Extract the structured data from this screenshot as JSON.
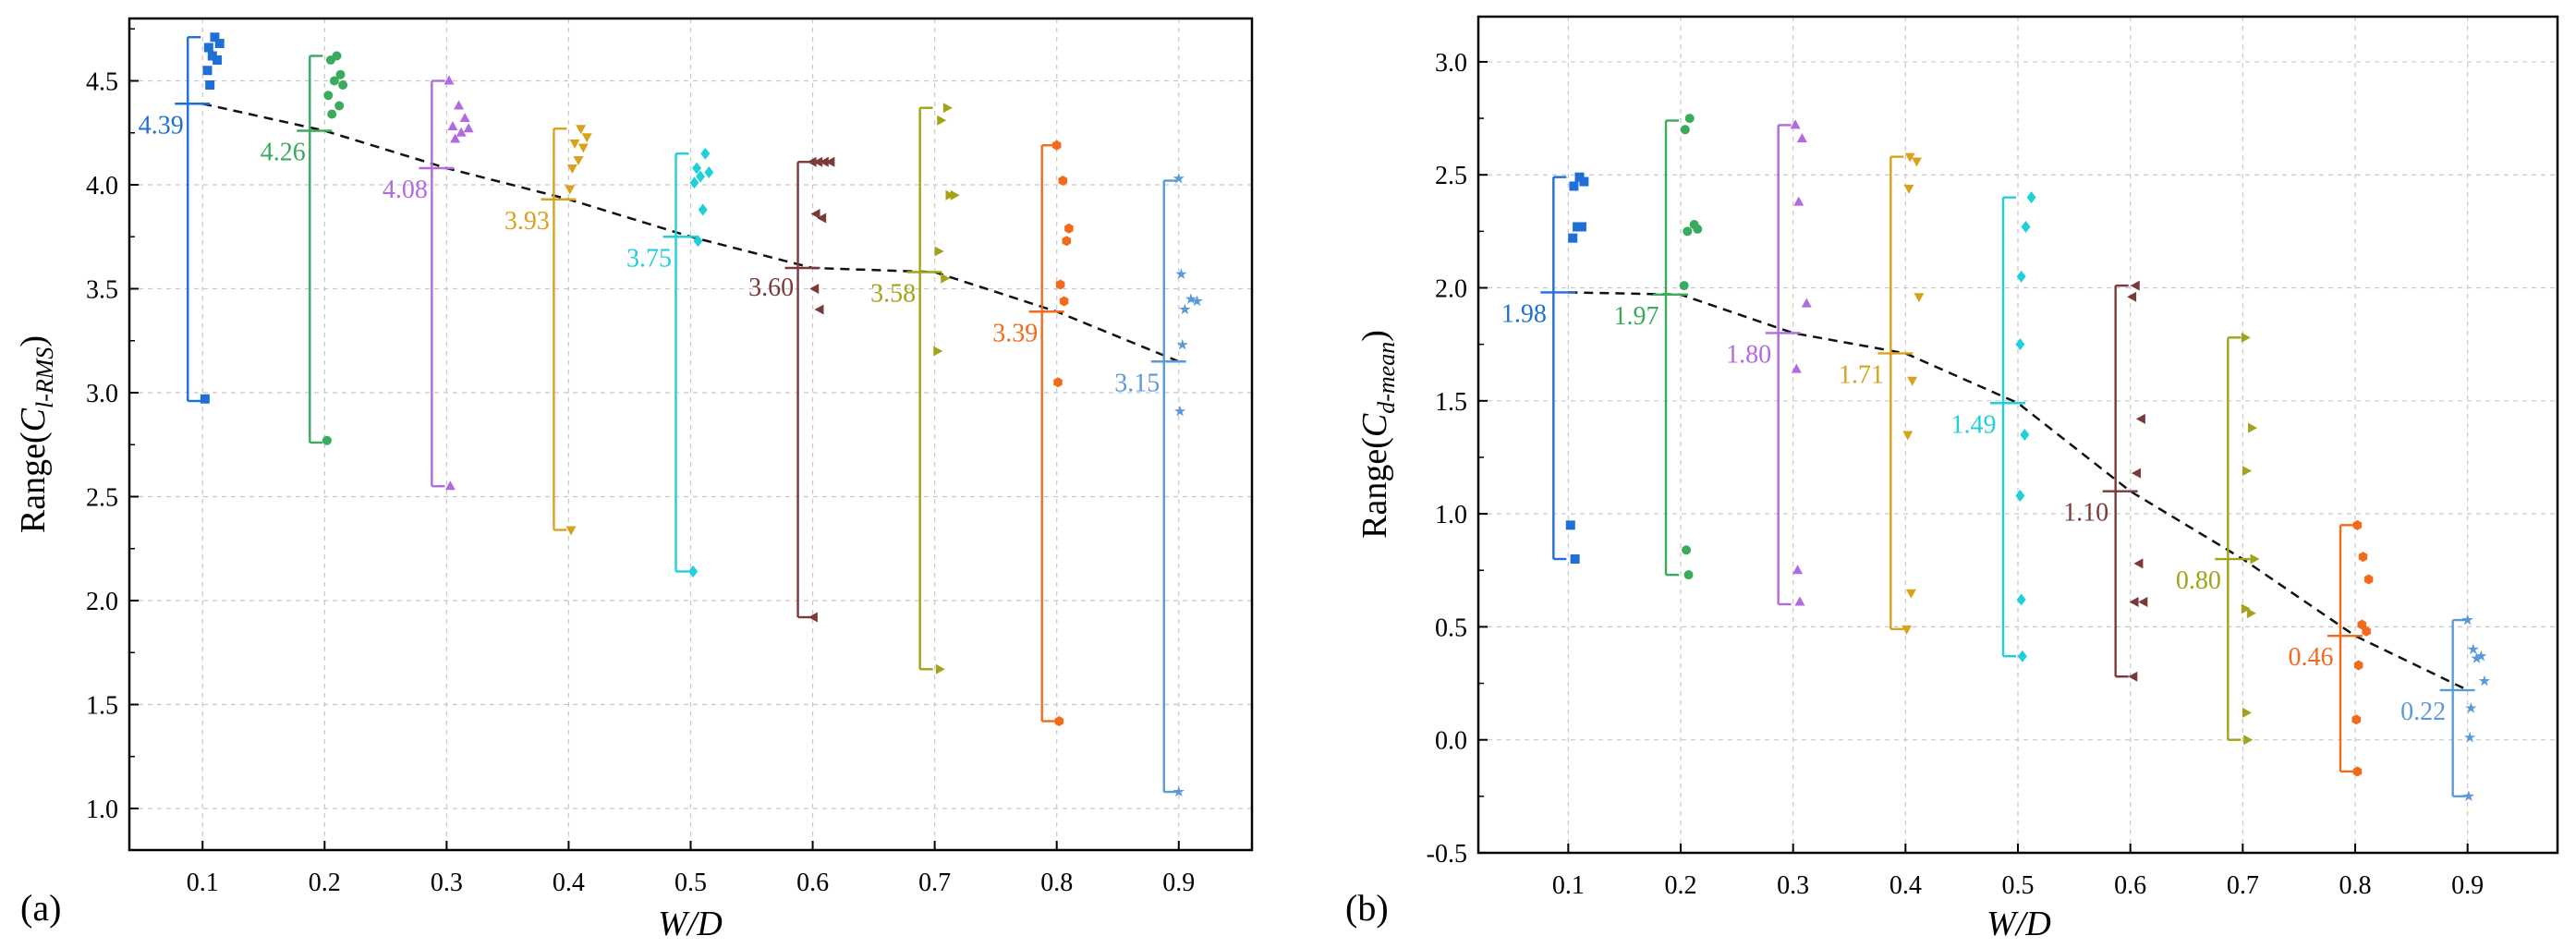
{
  "chart_data": [
    {
      "type": "scatter",
      "panel_label": "(a)",
      "xlabel": "W/D",
      "ylabel_prefix": "Range(",
      "ylabel_main": "C",
      "ylabel_sub": "l-RMS",
      "ylabel_suffix": ")",
      "xlim": [
        0.04,
        0.96
      ],
      "ylim": [
        0.8,
        4.8
      ],
      "x_ticks": [
        0.1,
        0.2,
        0.3,
        0.4,
        0.5,
        0.6,
        0.7,
        0.8,
        0.9
      ],
      "x_tick_labels": [
        "0.1",
        "0.2",
        "0.3",
        "0.4",
        "0.5",
        "0.6",
        "0.7",
        "0.8",
        "0.9"
      ],
      "y_ticks": [
        1.0,
        1.5,
        2.0,
        2.5,
        3.0,
        3.5,
        4.0,
        4.5
      ],
      "y_tick_labels": [
        "1.0",
        "1.5",
        "2.0",
        "2.5",
        "3.0",
        "3.5",
        "4.0",
        "4.5"
      ],
      "grid": true,
      "mean_line": "dashed",
      "series": [
        {
          "x": 0.1,
          "color": "#1f6fd6",
          "marker": "square",
          "min": 2.96,
          "max": 4.71,
          "mean": 4.39,
          "mean_label": "4.39",
          "points": [
            [
              0.11,
              4.71
            ],
            [
              0.114,
              4.68
            ],
            [
              0.105,
              4.66
            ],
            [
              0.108,
              4.62
            ],
            [
              0.112,
              4.6
            ],
            [
              0.104,
              4.55
            ],
            [
              0.106,
              4.48
            ],
            [
              0.102,
              2.97
            ]
          ]
        },
        {
          "x": 0.2,
          "color": "#3aaa5c",
          "marker": "circle",
          "min": 2.76,
          "max": 4.62,
          "mean": 4.26,
          "mean_label": "4.26",
          "points": [
            [
              0.21,
              4.62
            ],
            [
              0.205,
              4.6
            ],
            [
              0.213,
              4.53
            ],
            [
              0.208,
              4.5
            ],
            [
              0.215,
              4.48
            ],
            [
              0.203,
              4.43
            ],
            [
              0.212,
              4.38
            ],
            [
              0.206,
              4.34
            ],
            [
              0.202,
              2.77
            ]
          ]
        },
        {
          "x": 0.3,
          "color": "#b26ae0",
          "marker": "triangle-up",
          "min": 2.55,
          "max": 4.5,
          "mean": 4.08,
          "mean_label": "4.08",
          "points": [
            [
              0.302,
              4.5
            ],
            [
              0.31,
              4.38
            ],
            [
              0.315,
              4.32
            ],
            [
              0.305,
              4.28
            ],
            [
              0.312,
              4.25
            ],
            [
              0.318,
              4.27
            ],
            [
              0.307,
              4.22
            ],
            [
              0.303,
              2.55
            ]
          ]
        },
        {
          "x": 0.4,
          "color": "#d9a21e",
          "marker": "triangle-down",
          "min": 2.34,
          "max": 4.27,
          "mean": 3.93,
          "mean_label": "3.93",
          "points": [
            [
              0.41,
              4.27
            ],
            [
              0.415,
              4.23
            ],
            [
              0.405,
              4.2
            ],
            [
              0.412,
              4.18
            ],
            [
              0.408,
              4.12
            ],
            [
              0.403,
              4.08
            ],
            [
              0.401,
              3.98
            ],
            [
              0.402,
              2.34
            ]
          ]
        },
        {
          "x": 0.5,
          "color": "#1fd0d8",
          "marker": "diamond",
          "min": 2.14,
          "max": 4.15,
          "mean": 3.75,
          "mean_label": "3.75",
          "points": [
            [
              0.512,
              4.15
            ],
            [
              0.505,
              4.08
            ],
            [
              0.515,
              4.06
            ],
            [
              0.508,
              4.04
            ],
            [
              0.503,
              4.01
            ],
            [
              0.51,
              3.88
            ],
            [
              0.506,
              3.73
            ],
            [
              0.502,
              2.14
            ]
          ]
        },
        {
          "x": 0.6,
          "color": "#7a3a3a",
          "marker": "triangle-left",
          "min": 1.92,
          "max": 4.11,
          "mean": 3.6,
          "mean_label": "3.60",
          "points": [
            [
              0.6,
              4.11
            ],
            [
              0.605,
              4.11
            ],
            [
              0.61,
              4.11
            ],
            [
              0.615,
              4.11
            ],
            [
              0.603,
              3.86
            ],
            [
              0.608,
              3.84
            ],
            [
              0.602,
              3.5
            ],
            [
              0.606,
              3.4
            ],
            [
              0.601,
              1.92
            ]
          ]
        },
        {
          "x": 0.7,
          "color": "#a3a31a",
          "marker": "triangle-right",
          "min": 1.67,
          "max": 4.37,
          "mean": 3.58,
          "mean_label": "3.58",
          "points": [
            [
              0.71,
              4.37
            ],
            [
              0.705,
              4.31
            ],
            [
              0.712,
              3.95
            ],
            [
              0.716,
              3.95
            ],
            [
              0.703,
              3.68
            ],
            [
              0.708,
              3.55
            ],
            [
              0.702,
              3.2
            ],
            [
              0.704,
              1.67
            ]
          ]
        },
        {
          "x": 0.8,
          "color": "#f26b1d",
          "marker": "hexagon",
          "min": 1.42,
          "max": 4.19,
          "mean": 3.39,
          "mean_label": "3.39",
          "points": [
            [
              0.8,
              4.19
            ],
            [
              0.805,
              4.02
            ],
            [
              0.81,
              3.79
            ],
            [
              0.808,
              3.73
            ],
            [
              0.803,
              3.52
            ],
            [
              0.806,
              3.44
            ],
            [
              0.801,
              3.05
            ],
            [
              0.802,
              1.42
            ]
          ]
        },
        {
          "x": 0.9,
          "color": "#5a9ad8",
          "marker": "star",
          "min": 1.08,
          "max": 4.02,
          "mean": 3.15,
          "mean_label": "3.15",
          "points": [
            [
              0.9,
              4.03
            ],
            [
              0.902,
              3.57
            ],
            [
              0.91,
              3.45
            ],
            [
              0.915,
              3.44
            ],
            [
              0.905,
              3.4
            ],
            [
              0.903,
              3.23
            ],
            [
              0.901,
              2.91
            ],
            [
              0.9,
              1.08
            ]
          ]
        }
      ]
    },
    {
      "type": "scatter",
      "panel_label": "(b)",
      "xlabel": "W/D",
      "ylabel_prefix": "Range(",
      "ylabel_main": "C",
      "ylabel_sub": "d-mean",
      "ylabel_suffix": ")",
      "xlim": [
        0.02,
        0.98
      ],
      "ylim": [
        -0.5,
        3.2
      ],
      "x_ticks": [
        0.1,
        0.2,
        0.3,
        0.4,
        0.5,
        0.6,
        0.7,
        0.8,
        0.9
      ],
      "x_tick_labels": [
        "0.1",
        "0.2",
        "0.3",
        "0.4",
        "0.5",
        "0.6",
        "0.7",
        "0.8",
        "0.9"
      ],
      "y_ticks": [
        -0.5,
        0.0,
        0.5,
        1.0,
        1.5,
        2.0,
        2.5,
        3.0
      ],
      "y_tick_labels": [
        "-0.5",
        "0.0",
        "0.5",
        "1.0",
        "1.5",
        "2.0",
        "2.5",
        "3.0"
      ],
      "grid": true,
      "mean_line": "dashed",
      "series": [
        {
          "x": 0.1,
          "color": "#1f6fd6",
          "marker": "square",
          "min": 0.8,
          "max": 2.49,
          "mean": 1.98,
          "mean_label": "1.98",
          "points": [
            [
              0.11,
              2.49
            ],
            [
              0.114,
              2.47
            ],
            [
              0.105,
              2.45
            ],
            [
              0.112,
              2.27
            ],
            [
              0.108,
              2.27
            ],
            [
              0.104,
              2.22
            ],
            [
              0.102,
              0.95
            ],
            [
              0.106,
              0.8
            ]
          ]
        },
        {
          "x": 0.2,
          "color": "#3aaa5c",
          "marker": "circle",
          "min": 0.73,
          "max": 2.74,
          "mean": 1.97,
          "mean_label": "1.97",
          "points": [
            [
              0.208,
              2.75
            ],
            [
              0.204,
              2.7
            ],
            [
              0.212,
              2.28
            ],
            [
              0.215,
              2.26
            ],
            [
              0.206,
              2.25
            ],
            [
              0.203,
              2.01
            ],
            [
              0.205,
              0.84
            ],
            [
              0.207,
              0.73
            ]
          ]
        },
        {
          "x": 0.3,
          "color": "#b26ae0",
          "marker": "triangle-up",
          "min": 0.6,
          "max": 2.72,
          "mean": 1.8,
          "mean_label": "1.80",
          "points": [
            [
              0.302,
              2.72
            ],
            [
              0.308,
              2.66
            ],
            [
              0.305,
              2.38
            ],
            [
              0.312,
              1.93
            ],
            [
              0.303,
              1.64
            ],
            [
              0.304,
              0.75
            ],
            [
              0.306,
              0.61
            ]
          ]
        },
        {
          "x": 0.4,
          "color": "#d9a21e",
          "marker": "triangle-down",
          "min": 0.49,
          "max": 2.58,
          "mean": 1.71,
          "mean_label": "1.71",
          "points": [
            [
              0.404,
              2.58
            ],
            [
              0.41,
              2.56
            ],
            [
              0.403,
              2.44
            ],
            [
              0.412,
              1.96
            ],
            [
              0.406,
              1.59
            ],
            [
              0.402,
              1.35
            ],
            [
              0.405,
              0.65
            ],
            [
              0.401,
              0.49
            ]
          ]
        },
        {
          "x": 0.5,
          "color": "#1fd0d8",
          "marker": "diamond",
          "min": 0.37,
          "max": 2.4,
          "mean": 1.49,
          "mean_label": "1.49",
          "points": [
            [
              0.512,
              2.4
            ],
            [
              0.507,
              2.27
            ],
            [
              0.503,
              2.05
            ],
            [
              0.502,
              1.75
            ],
            [
              0.506,
              1.35
            ],
            [
              0.502,
              1.08
            ],
            [
              0.503,
              0.62
            ],
            [
              0.504,
              0.37
            ]
          ]
        },
        {
          "x": 0.6,
          "color": "#7a3a3a",
          "marker": "triangle-left",
          "min": 0.28,
          "max": 2.01,
          "mean": 1.1,
          "mean_label": "1.10",
          "points": [
            [
              0.605,
              2.01
            ],
            [
              0.602,
              1.96
            ],
            [
              0.61,
              1.42
            ],
            [
              0.606,
              1.18
            ],
            [
              0.608,
              0.78
            ],
            [
              0.604,
              0.61
            ],
            [
              0.612,
              0.61
            ],
            [
              0.603,
              0.28
            ]
          ]
        },
        {
          "x": 0.7,
          "color": "#a3a31a",
          "marker": "triangle-right",
          "min": 0.0,
          "max": 1.78,
          "mean": 0.8,
          "mean_label": "0.80",
          "points": [
            [
              0.702,
              1.78
            ],
            [
              0.708,
              1.38
            ],
            [
              0.703,
              1.19
            ],
            [
              0.71,
              0.8
            ],
            [
              0.702,
              0.58
            ],
            [
              0.707,
              0.56
            ],
            [
              0.703,
              0.12
            ],
            [
              0.704,
              0.0
            ]
          ]
        },
        {
          "x": 0.8,
          "color": "#f26b1d",
          "marker": "hexagon",
          "min": -0.14,
          "max": 0.95,
          "mean": 0.46,
          "mean_label": "0.46",
          "points": [
            [
              0.802,
              0.95
            ],
            [
              0.807,
              0.81
            ],
            [
              0.812,
              0.71
            ],
            [
              0.806,
              0.51
            ],
            [
              0.81,
              0.48
            ],
            [
              0.803,
              0.33
            ],
            [
              0.801,
              0.09
            ],
            [
              0.802,
              -0.14
            ]
          ]
        },
        {
          "x": 0.9,
          "color": "#5a9ad8",
          "marker": "star",
          "min": -0.25,
          "max": 0.53,
          "mean": 0.22,
          "mean_label": "0.22",
          "points": [
            [
              0.9,
              0.53
            ],
            [
              0.905,
              0.4
            ],
            [
              0.912,
              0.37
            ],
            [
              0.908,
              0.36
            ],
            [
              0.915,
              0.26
            ],
            [
              0.903,
              0.14
            ],
            [
              0.902,
              0.01
            ],
            [
              0.901,
              -0.25
            ]
          ]
        }
      ]
    }
  ]
}
